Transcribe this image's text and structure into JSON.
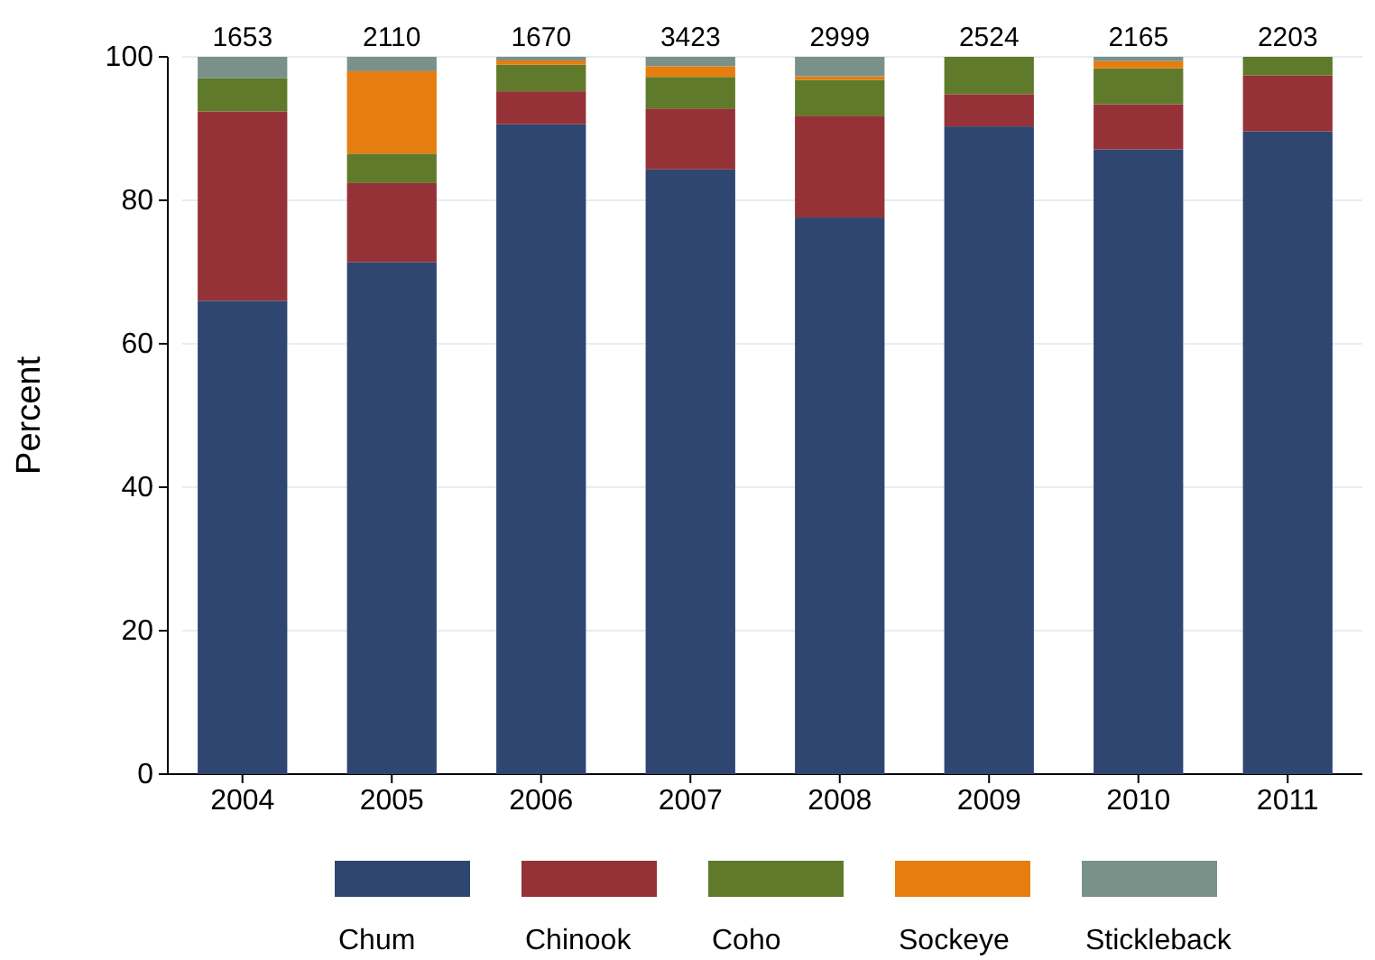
{
  "chart_data": {
    "type": "bar",
    "stacked": true,
    "ylabel": "Percent",
    "categories": [
      "2004",
      "2005",
      "2006",
      "2007",
      "2008",
      "2009",
      "2010",
      "2011"
    ],
    "series": [
      {
        "name": "Chum",
        "color": "#2e4670",
        "values": [
          66.0,
          71.4,
          90.6,
          84.3,
          77.6,
          90.3,
          87.1,
          89.6
        ]
      },
      {
        "name": "Chinook",
        "color": "#943237",
        "values": [
          26.4,
          11.0,
          4.6,
          8.5,
          14.2,
          4.5,
          6.3,
          7.8
        ]
      },
      {
        "name": "Coho",
        "color": "#5f7a2a",
        "values": [
          4.6,
          4.1,
          3.7,
          4.4,
          5.0,
          5.2,
          5.0,
          2.6
        ]
      },
      {
        "name": "Sockeye",
        "color": "#e57d0f",
        "values": [
          0,
          11.5,
          0.6,
          1.5,
          0.5,
          0,
          1.0,
          0
        ]
      },
      {
        "name": "Stickleback",
        "color": "#7a918a",
        "values": [
          3.0,
          2.0,
          0.5,
          1.3,
          2.7,
          0,
          0.6,
          0
        ]
      }
    ],
    "ylim": [
      0,
      100
    ],
    "yticks": [
      0,
      20,
      40,
      60,
      80,
      100
    ],
    "grid": "y",
    "legend": "bottom",
    "annotations": [
      {
        "text": "1653",
        "x": "2004",
        "y": 100
      },
      {
        "text": "2110",
        "x": "2005",
        "y": 100
      },
      {
        "text": "1670",
        "x": "2006",
        "y": 100
      },
      {
        "text": "3423",
        "x": "2007",
        "y": 100
      },
      {
        "text": "2999",
        "x": "2008",
        "y": 100
      },
      {
        "text": "2524",
        "x": "2009",
        "y": 100
      },
      {
        "text": "2165",
        "x": "2010",
        "y": 100
      },
      {
        "text": "2203",
        "x": "2011",
        "y": 100
      }
    ]
  }
}
